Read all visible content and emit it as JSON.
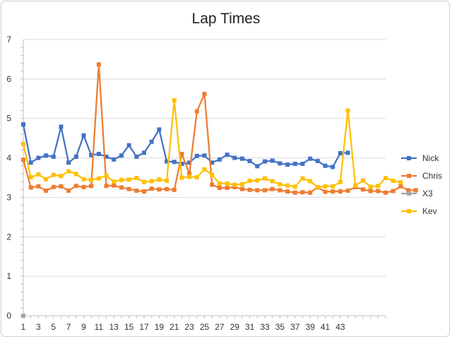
{
  "chart_data": {
    "type": "line",
    "title": "Lap Times",
    "xlabel": "",
    "ylabel": "",
    "ylim": [
      0,
      7
    ],
    "yticks": [
      0,
      1,
      2,
      3,
      4,
      5,
      6,
      7
    ],
    "xlim": [
      1,
      49
    ],
    "xtick_labels": [
      1,
      3,
      5,
      7,
      9,
      11,
      13,
      15,
      17,
      19,
      21,
      23,
      25,
      27,
      29,
      31,
      33,
      35,
      37,
      39,
      41,
      43
    ],
    "grid": "horizontal",
    "legend_position": "right",
    "series": [
      {
        "name": "Nick",
        "color": "#4472C4",
        "marker": "square",
        "values": [
          4.85,
          3.88,
          4.0,
          4.06,
          4.03,
          4.79,
          3.88,
          4.03,
          4.57,
          4.07,
          4.1,
          4.03,
          3.96,
          4.06,
          4.32,
          4.03,
          4.13,
          4.41,
          4.72,
          3.91,
          3.9,
          3.85,
          3.88,
          4.05,
          4.06,
          3.88,
          3.96,
          4.08,
          4.0,
          3.98,
          3.92,
          3.79,
          3.91,
          3.93,
          3.86,
          3.83,
          3.85,
          3.85,
          3.98,
          3.92,
          3.8,
          3.77,
          4.12,
          4.13
        ]
      },
      {
        "name": "Chris",
        "color": "#ED7D31",
        "marker": "square",
        "values": [
          3.95,
          3.25,
          3.28,
          3.17,
          3.26,
          3.28,
          3.17,
          3.29,
          3.26,
          3.29,
          6.37,
          3.29,
          3.3,
          3.25,
          3.21,
          3.17,
          3.15,
          3.22,
          3.2,
          3.21,
          3.19,
          4.1,
          3.6,
          5.18,
          5.62,
          3.32,
          3.24,
          3.24,
          3.26,
          3.21,
          3.19,
          3.18,
          3.18,
          3.21,
          3.18,
          3.15,
          3.12,
          3.13,
          3.12,
          3.25,
          3.14,
          3.15,
          3.15,
          3.17,
          3.26,
          3.2,
          3.16,
          3.16,
          3.12,
          3.16,
          3.28,
          3.18,
          3.18
        ]
      },
      {
        "name": "X3",
        "color": "#A5A5A5",
        "marker": "square",
        "values": [
          0
        ]
      },
      {
        "name": "Kev",
        "color": "#FFC000",
        "marker": "square",
        "values": [
          4.35,
          3.51,
          3.58,
          3.46,
          3.57,
          3.54,
          3.66,
          3.59,
          3.46,
          3.44,
          3.48,
          3.55,
          3.4,
          3.44,
          3.45,
          3.49,
          3.39,
          3.41,
          3.45,
          3.42,
          5.46,
          3.5,
          3.52,
          3.51,
          3.71,
          3.57,
          3.35,
          3.35,
          3.32,
          3.33,
          3.42,
          3.43,
          3.48,
          3.41,
          3.33,
          3.3,
          3.27,
          3.48,
          3.41,
          3.26,
          3.28,
          3.28,
          3.39,
          5.2,
          3.3,
          3.43,
          3.27,
          3.29,
          3.49,
          3.42,
          3.38
        ]
      }
    ]
  }
}
